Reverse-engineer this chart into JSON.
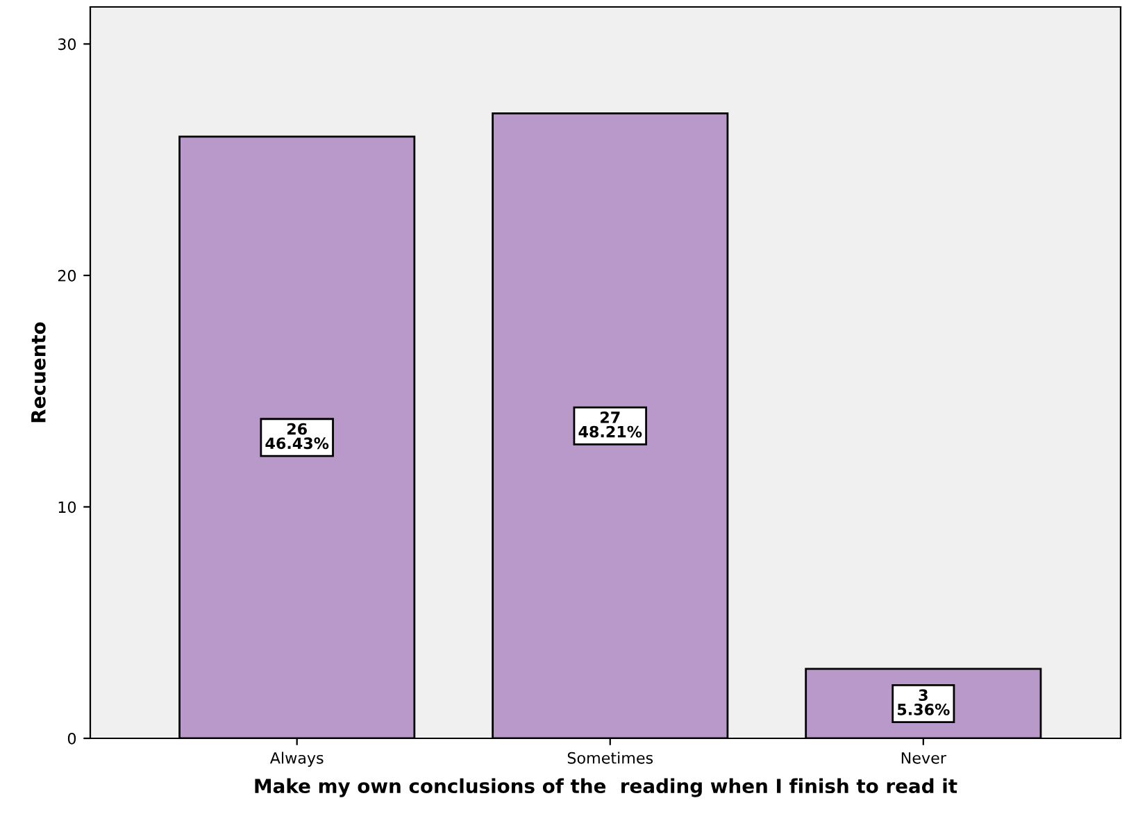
{
  "chart_data": {
    "type": "bar",
    "xlabel": "Make my own conclusions of the  reading when I finish to read it",
    "ylabel": "Recuento",
    "categories": [
      "Always",
      "Sometimes",
      "Never"
    ],
    "values": [
      26,
      27,
      3
    ],
    "value_labels": [
      "26\n46.43%",
      "27\n48.21%",
      "3\n5.36%"
    ],
    "color": "#b899c9",
    "ylim": [
      0,
      31.6
    ],
    "yticks": [
      0,
      10,
      20,
      30
    ],
    "grid": false
  }
}
